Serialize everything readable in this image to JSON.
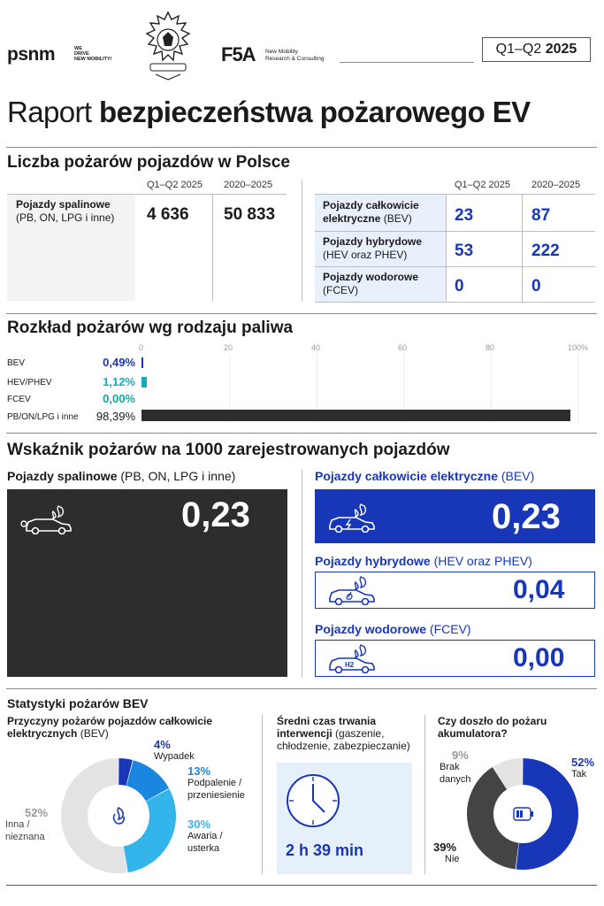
{
  "header": {
    "psnm_logo": "psnm",
    "psnm_tagline": [
      "WE",
      "DRIVE",
      "NEW MOBILITY!"
    ],
    "f5a_logo": "F5A",
    "f5a_tagline": [
      "New Mobility",
      "Research & Consulting"
    ],
    "period_prefix": "Q1–Q2",
    "period_year": "2025"
  },
  "title": {
    "light": "Raport",
    "bold": "bezpieczeństwa pożarowego EV"
  },
  "section1": {
    "title": "Liczba pożarów pojazdów w Polsce",
    "col_q": "Q1–Q2 2025",
    "col_range": "2020–2025",
    "left": {
      "name_bold": "Pojazdy spalinowe",
      "name_sub": "(PB, ON, LPG i inne)",
      "q": "4 636",
      "range": "50 833"
    },
    "right": [
      {
        "name_bold": "Pojazdy całkowicie",
        "name_bold2": "elektryczne",
        "name_sub": "(BEV)",
        "q": "23",
        "range": "87"
      },
      {
        "name_bold": "Pojazdy hybrydowe",
        "name_bold2": "",
        "name_sub": "(HEV oraz PHEV)",
        "q": "53",
        "range": "222"
      },
      {
        "name_bold": "Pojazdy wodorowe",
        "name_bold2": "",
        "name_sub": "(FCEV)",
        "q": "0",
        "range": "0"
      }
    ]
  },
  "section2": {
    "title": "Rozkład pożarów wg rodzaju paliwa",
    "axis": [
      "0",
      "20",
      "40",
      "60",
      "80",
      "100%"
    ],
    "rows": [
      {
        "label": "BEV",
        "value_text": "0,49%",
        "value": 0.49,
        "color": "#1737b8"
      },
      {
        "label": "HEV/PHEV",
        "value_text": "1,12%",
        "value": 1.12,
        "color": "#17a8c8"
      },
      {
        "label": "FCEV",
        "value_text": "0,00%",
        "value": 0.0,
        "color": "#15a79a"
      },
      {
        "label": "PB/ON/LPG i inne",
        "value_text": "98,39%",
        "value": 98.39,
        "color": "#2d2d2d"
      }
    ]
  },
  "section3": {
    "title": "Wskaźnik pożarów na 1000 zarejestrowanych pojazdów",
    "ice": {
      "label_bold": "Pojazdy spalinowe",
      "label_sub": "(PB, ON, LPG i inne)",
      "value": "0,23"
    },
    "bev": {
      "label_bold": "Pojazdy całkowicie elektryczne",
      "label_sub": "(BEV)",
      "value": "0,23"
    },
    "hev": {
      "label_bold": "Pojazdy hybrydowe",
      "label_sub": "(HEV oraz PHEV)",
      "value": "0,04"
    },
    "fcev": {
      "label_bold": "Pojazdy wodorowe",
      "label_sub": "(FCEV)",
      "value": "0,00"
    }
  },
  "section4": {
    "title": "Statystyki pożarów BEV",
    "causes": {
      "title_bold": "Przyczyny pożarów pojazdów całkowicie elektrycznych",
      "title_sub": "(BEV)",
      "slices": [
        {
          "pct": "4%",
          "label": "Wypadek",
          "value": 4,
          "color": "#1737b8"
        },
        {
          "pct": "13%",
          "label": "Podpalenie / przeniesienie",
          "value": 13,
          "color": "#1b86e0"
        },
        {
          "pct": "30%",
          "label": "Awaria / usterka",
          "value": 30,
          "color": "#33b4ea"
        },
        {
          "pct": "52%",
          "label": "Inna / nieznana",
          "value": 52,
          "color": "#e3e3e3"
        }
      ]
    },
    "time": {
      "title_bold": "Średni czas trwania interwencji",
      "title_sub": "(gaszenie, chłodzenie, zabezpieczanie)",
      "value": "2 h 39 min"
    },
    "battery": {
      "title": "Czy doszło do pożaru akumulatora?",
      "slices": [
        {
          "pct": "52%",
          "label": "Tak",
          "value": 52,
          "color": "#1737b8"
        },
        {
          "pct": "39%",
          "label": "Nie",
          "value": 39,
          "color": "#444444"
        },
        {
          "pct": "9%",
          "label": "Brak danych",
          "value": 9,
          "color": "#e3e3e3"
        }
      ]
    }
  }
}
